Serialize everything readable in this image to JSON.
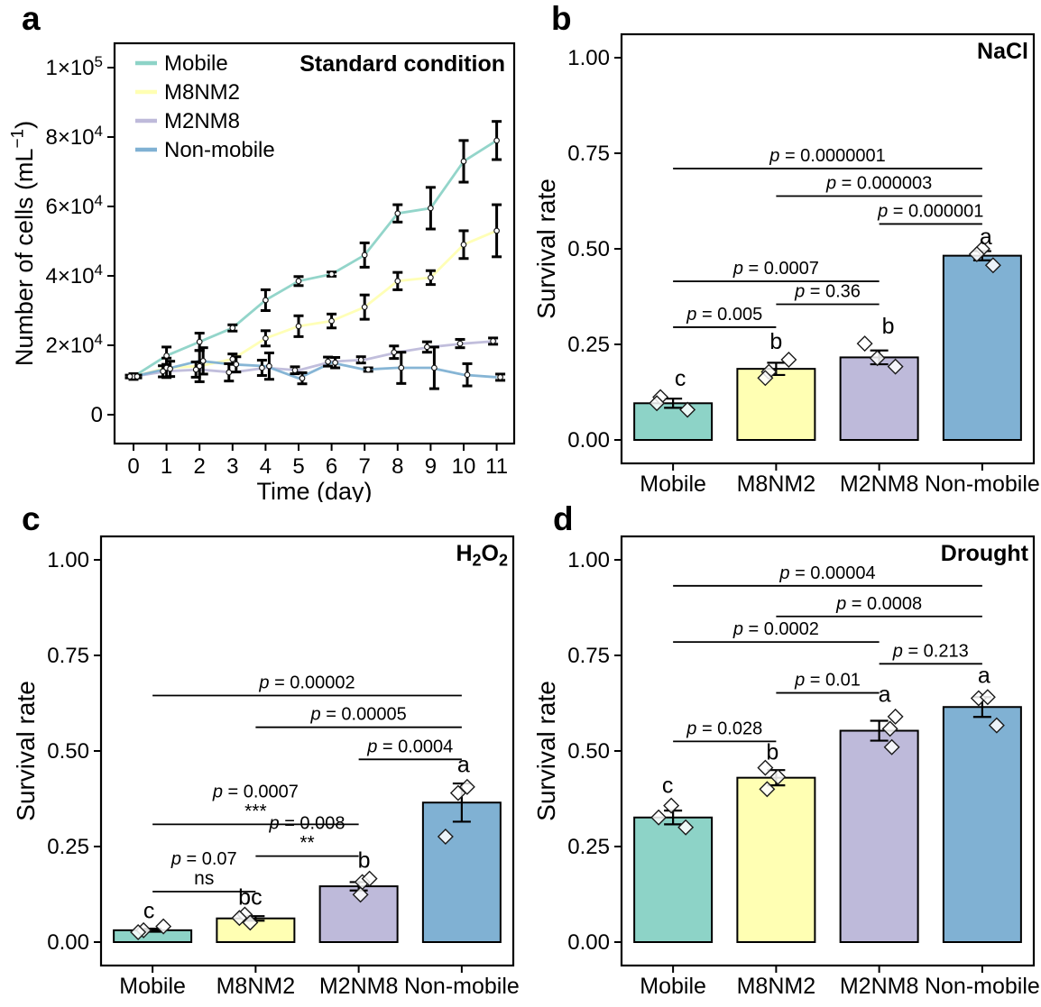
{
  "figure": {
    "palette": {
      "mobile": "#8DD3C7",
      "m8nm2": "#FFFFB3",
      "m2nm8": "#BEBADA",
      "non_mobile": "#80B1D3",
      "axis": "#000000"
    },
    "panels": [
      {
        "tag": "a"
      },
      {
        "tag": "b"
      },
      {
        "tag": "c"
      },
      {
        "tag": "d"
      }
    ]
  },
  "chart_data": [
    {
      "panel": "a",
      "type": "line",
      "title": "Standard condition",
      "xlabel": "Time (day)",
      "ylabel": "Number of cells (mL⁻¹)",
      "ylabel_parts": [
        {
          "t": "Number of cells (mL"
        },
        {
          "t": "−1",
          "sup": true
        },
        {
          "t": ")"
        }
      ],
      "x": [
        0,
        1,
        2,
        3,
        4,
        5,
        6,
        7,
        8,
        9,
        10,
        11
      ],
      "xtick_labels": [
        "0",
        "1",
        "2",
        "3",
        "4",
        "5",
        "6",
        "7",
        "8",
        "9",
        "10",
        "11"
      ],
      "ylim": [
        0,
        105000
      ],
      "yticks": [
        {
          "v": 0,
          "parts": [
            {
              "t": "0"
            }
          ]
        },
        {
          "v": 20000,
          "parts": [
            {
              "t": "2×10"
            },
            {
              "t": "4",
              "sup": true
            }
          ]
        },
        {
          "v": 40000,
          "parts": [
            {
              "t": "4×10"
            },
            {
              "t": "4",
              "sup": true
            }
          ]
        },
        {
          "v": 60000,
          "parts": [
            {
              "t": "6×10"
            },
            {
              "t": "4",
              "sup": true
            }
          ]
        },
        {
          "v": 80000,
          "parts": [
            {
              "t": "8×10"
            },
            {
              "t": "4",
              "sup": true
            }
          ]
        },
        {
          "v": 100000,
          "parts": [
            {
              "t": "1×10"
            },
            {
              "t": "5",
              "sup": true
            }
          ]
        }
      ],
      "legend_position": "top-left",
      "grid": false,
      "series": [
        {
          "name": "Mobile",
          "color": "#8DD3C7",
          "dodge": 0,
          "values": [
            11000,
            17000,
            21000,
            25000,
            33000,
            38500,
            40500,
            46000,
            58000,
            59500,
            73000,
            79000
          ],
          "errors": [
            800,
            2500,
            2500,
            900,
            3000,
            1300,
            600,
            3500,
            2500,
            6000,
            6000,
            5500
          ]
        },
        {
          "name": "M8NM2",
          "color": "#FFFFB3",
          "dodge": 0,
          "values": [
            11000,
            13500,
            14000,
            16000,
            22000,
            25500,
            27000,
            31000,
            38500,
            39500,
            49000,
            53000
          ],
          "errors": [
            800,
            2800,
            4500,
            1500,
            2200,
            3000,
            2000,
            3500,
            2500,
            2000,
            4000,
            7500
          ]
        },
        {
          "name": "M2NM8",
          "color": "#BEBADA",
          "dodge": -4,
          "values": [
            11000,
            12500,
            13000,
            12200,
            13500,
            12800,
            15300,
            15800,
            18000,
            19500,
            20500,
            21200
          ],
          "errors": [
            400,
            1600,
            2200,
            2500,
            2200,
            1000,
            1300,
            900,
            1800,
            1500,
            1200,
            900
          ]
        },
        {
          "name": "Non-mobile",
          "color": "#80B1D3",
          "dodge": 4,
          "values": [
            11000,
            13200,
            15500,
            14500,
            14000,
            10500,
            15000,
            13000,
            13500,
            13500,
            11500,
            10800
          ],
          "errors": [
            400,
            2200,
            3800,
            2200,
            3800,
            1600,
            1500,
            500,
            4500,
            6000,
            3200,
            900
          ]
        }
      ]
    },
    {
      "panel": "b",
      "type": "bar",
      "condition_tag": "NaCl",
      "condition_tag_parts": [
        {
          "t": "NaCl"
        }
      ],
      "ylabel": "Survival rate",
      "categories": [
        "Mobile",
        "M8NM2",
        "M2NM8",
        "Non-mobile"
      ],
      "bar_colors": [
        "#8DD3C7",
        "#FFFFB3",
        "#BEBADA",
        "#80B1D3"
      ],
      "values": [
        0.096,
        0.186,
        0.216,
        0.482
      ],
      "errors": [
        0.012,
        0.016,
        0.018,
        0.012
      ],
      "sig_letters": [
        {
          "label": "c",
          "dx": 8,
          "y": 0.142
        },
        {
          "label": "b",
          "dx": 0,
          "y": 0.238
        },
        {
          "label": "b",
          "dx": 10,
          "y": 0.278
        },
        {
          "label": "a",
          "dx": 4,
          "y": 0.512
        }
      ],
      "points": [
        [
          [
            -14,
            0.112
          ],
          [
            -18,
            0.096
          ],
          [
            16,
            0.079
          ]
        ],
        [
          [
            -8,
            0.178
          ],
          [
            -12,
            0.162
          ],
          [
            14,
            0.21
          ]
        ],
        [
          [
            -16,
            0.252
          ],
          [
            -2,
            0.214
          ],
          [
            18,
            0.192
          ]
        ],
        [
          [
            0,
            0.5
          ],
          [
            -6,
            0.486
          ],
          [
            12,
            0.457
          ]
        ]
      ],
      "yticks": [
        {
          "v": 0,
          "label": "0.00"
        },
        {
          "v": 0.25,
          "label": "0.25"
        },
        {
          "v": 0.5,
          "label": "0.50"
        },
        {
          "v": 0.75,
          "label": "0.75"
        },
        {
          "v": 1,
          "label": "1.00"
        }
      ],
      "ylim": [
        0,
        1.05
      ],
      "p_brackets": [
        {
          "group1": 0,
          "group2": 1,
          "y": 0.295,
          "label": "p = 0.005"
        },
        {
          "group1": 1,
          "group2": 2,
          "y": 0.355,
          "label": "p = 0.36"
        },
        {
          "group1": 0,
          "group2": 2,
          "y": 0.415,
          "label": "p = 0.0007"
        },
        {
          "group1": 2,
          "group2": 3,
          "y": 0.565,
          "label": "p = 0.000001"
        },
        {
          "group1": 1,
          "group2": 3,
          "y": 0.638,
          "label": "p = 0.000003"
        },
        {
          "group1": 0,
          "group2": 3,
          "y": 0.71,
          "label": "p = 0.0000001"
        }
      ]
    },
    {
      "panel": "c",
      "type": "bar",
      "condition_tag": "H₂O₂",
      "condition_tag_parts": [
        {
          "t": "H"
        },
        {
          "t": "2",
          "sub": true
        },
        {
          "t": "O"
        },
        {
          "t": "2",
          "sub": true
        }
      ],
      "ylabel": "Survival rate",
      "categories": [
        "Mobile",
        "M8NM2",
        "M2NM8",
        "Non-mobile"
      ],
      "bar_colors": [
        "#8DD3C7",
        "#FFFFB3",
        "#BEBADA",
        "#80B1D3"
      ],
      "values": [
        0.031,
        0.062,
        0.146,
        0.365
      ],
      "errors": [
        0.004,
        0.006,
        0.011,
        0.05
      ],
      "sig_letters": [
        {
          "label": "c",
          "dx": -4,
          "y": 0.062
        },
        {
          "label": "bc",
          "dx": -6,
          "y": 0.098
        },
        {
          "label": "b",
          "dx": 6,
          "y": 0.195
        },
        {
          "label": "a",
          "dx": 2,
          "y": 0.445
        }
      ],
      "points": [
        [
          [
            -10,
            0.031
          ],
          [
            -16,
            0.026
          ],
          [
            12,
            0.041
          ]
        ],
        [
          [
            -12,
            0.072
          ],
          [
            -18,
            0.063
          ],
          [
            -6,
            0.051
          ]
        ],
        [
          [
            4,
            0.157
          ],
          [
            12,
            0.166
          ],
          [
            2,
            0.124
          ]
        ],
        [
          [
            -4,
            0.39
          ],
          [
            6,
            0.406
          ],
          [
            -18,
            0.276
          ]
        ]
      ],
      "yticks": [
        {
          "v": 0,
          "label": "0.00"
        },
        {
          "v": 0.25,
          "label": "0.25"
        },
        {
          "v": 0.5,
          "label": "0.50"
        },
        {
          "v": 0.75,
          "label": "0.75"
        },
        {
          "v": 1,
          "label": "1.00"
        }
      ],
      "ylim": [
        0,
        1.05
      ],
      "p_brackets": [
        {
          "group1": 0,
          "group2": 1,
          "y": 0.132,
          "label": "p = 0.07",
          "sub": "ns"
        },
        {
          "group1": 1,
          "group2": 2,
          "y": 0.225,
          "label": "p = 0.008",
          "sub": "**"
        },
        {
          "group1": 0,
          "group2": 2,
          "y": 0.308,
          "label": "p = 0.0007",
          "sub": "***"
        },
        {
          "group1": 2,
          "group2": 3,
          "y": 0.478,
          "label": "p = 0.0004"
        },
        {
          "group1": 1,
          "group2": 3,
          "y": 0.562,
          "label": "p = 0.00005"
        },
        {
          "group1": 0,
          "group2": 3,
          "y": 0.645,
          "label": "p = 0.00002"
        }
      ]
    },
    {
      "panel": "d",
      "type": "bar",
      "condition_tag": "Drought",
      "condition_tag_parts": [
        {
          "t": "Drought"
        }
      ],
      "ylabel": "Survival rate",
      "categories": [
        "Mobile",
        "M8NM2",
        "M2NM8",
        "Non-mobile"
      ],
      "bar_colors": [
        "#8DD3C7",
        "#FFFFB3",
        "#BEBADA",
        "#80B1D3"
      ],
      "values": [
        0.326,
        0.43,
        0.553,
        0.615
      ],
      "errors": [
        0.018,
        0.02,
        0.026,
        0.026
      ],
      "sig_letters": [
        {
          "label": "c",
          "dx": -6,
          "y": 0.39
        },
        {
          "label": "b",
          "dx": -4,
          "y": 0.478
        },
        {
          "label": "a",
          "dx": 6,
          "y": 0.628
        },
        {
          "label": "a",
          "dx": 2,
          "y": 0.678
        }
      ],
      "points": [
        [
          [
            -16,
            0.326
          ],
          [
            -2,
            0.357
          ],
          [
            14,
            0.3
          ]
        ],
        [
          [
            -12,
            0.456
          ],
          [
            2,
            0.432
          ],
          [
            -10,
            0.4
          ]
        ],
        [
          [
            18,
            0.59
          ],
          [
            12,
            0.558
          ],
          [
            14,
            0.51
          ]
        ],
        [
          [
            -4,
            0.638
          ],
          [
            6,
            0.641
          ],
          [
            16,
            0.567
          ]
        ]
      ],
      "yticks": [
        {
          "v": 0,
          "label": "0.00"
        },
        {
          "v": 0.25,
          "label": "0.25"
        },
        {
          "v": 0.5,
          "label": "0.50"
        },
        {
          "v": 0.75,
          "label": "0.75"
        },
        {
          "v": 1,
          "label": "1.00"
        }
      ],
      "ylim": [
        0,
        1.05
      ],
      "p_brackets": [
        {
          "group1": 0,
          "group2": 1,
          "y": 0.525,
          "label": "p = 0.028"
        },
        {
          "group1": 1,
          "group2": 2,
          "y": 0.652,
          "label": "p = 0.01"
        },
        {
          "group1": 2,
          "group2": 3,
          "y": 0.728,
          "label": "p = 0.213"
        },
        {
          "group1": 0,
          "group2": 2,
          "y": 0.785,
          "label": "p = 0.0002"
        },
        {
          "group1": 1,
          "group2": 3,
          "y": 0.852,
          "label": "p = 0.0008"
        },
        {
          "group1": 0,
          "group2": 3,
          "y": 0.932,
          "label": "p = 0.00004"
        }
      ]
    }
  ]
}
